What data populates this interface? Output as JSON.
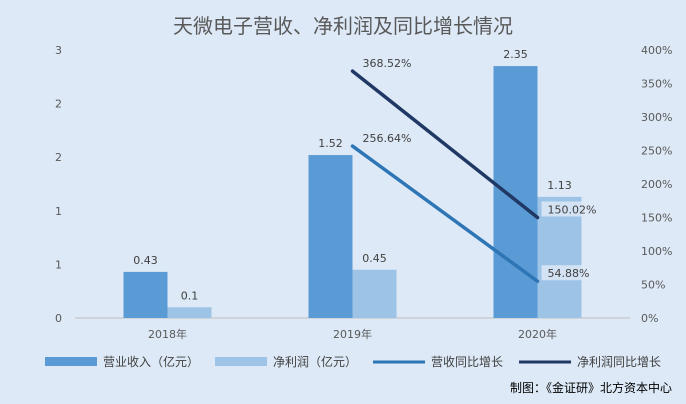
{
  "chart_data": {
    "type": "bar",
    "title": "天微电子营收、净利润及同比增长情况",
    "credit": "制图：《金证研》北方资本中心",
    "categories": [
      "2018年",
      "2019年",
      "2020年"
    ],
    "left_axis": {
      "ticks": [
        "0",
        "1",
        "1",
        "2",
        "2",
        "3"
      ],
      "ylim": [
        0,
        2.5
      ]
    },
    "right_axis": {
      "ticks": [
        "0%",
        "50%",
        "100%",
        "150%",
        "200%",
        "250%",
        "300%",
        "350%",
        "400%"
      ],
      "ylim": [
        0,
        400
      ]
    },
    "series": [
      {
        "name": "营业收入（亿元）",
        "kind": "bar",
        "axis": "left",
        "color": "#5b9bd5",
        "values": [
          0.43,
          1.52,
          2.35
        ],
        "labels": [
          "0.43",
          "1.52",
          "2.35"
        ]
      },
      {
        "name": "净利润（亿元）",
        "kind": "bar",
        "axis": "left",
        "color": "#9dc3e6",
        "values": [
          0.1,
          0.45,
          1.13
        ],
        "labels": [
          "0.1",
          "0.45",
          "1.13"
        ]
      },
      {
        "name": "营收同比增长",
        "kind": "line",
        "axis": "right",
        "color": "#2e75b6",
        "values": [
          null,
          256.64,
          54.88
        ],
        "labels": [
          "",
          "256.64%",
          "54.88%"
        ]
      },
      {
        "name": "净利润同比增长",
        "kind": "line",
        "axis": "right",
        "color": "#1f3864",
        "values": [
          null,
          368.52,
          150.02
        ],
        "labels": [
          "",
          "368.52%",
          "150.02%"
        ]
      }
    ],
    "grid": false,
    "legend": "bottom"
  }
}
